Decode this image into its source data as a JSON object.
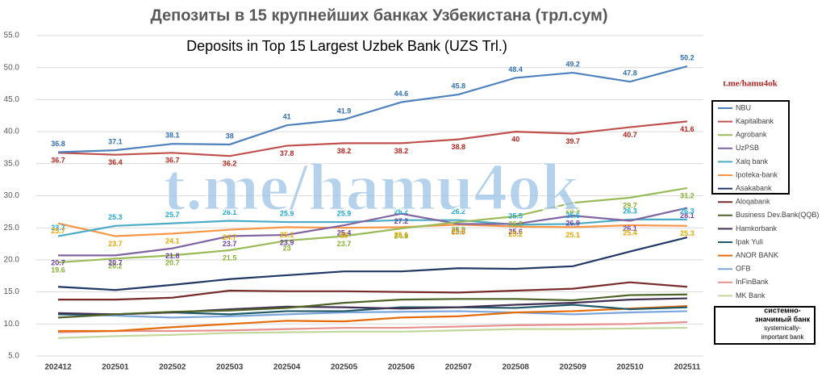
{
  "chart_data": {
    "type": "line",
    "title": "Депозиты в 15 крупнейших банках Узбекистана (трл.сум)",
    "subtitle": "Deposits in Top 15 Largest Uzbek Bank (UZS Trl.)",
    "watermark": "t.me/hamu4ok",
    "watermark_small": "t.me/hamu4ok",
    "note": [
      "системно-",
      "значимый банк",
      "systemically-",
      "important bank"
    ],
    "categories": [
      "202412",
      "202501",
      "202502",
      "202503",
      "202504",
      "202505",
      "202506",
      "202507",
      "202508",
      "202509",
      "202510",
      "202511"
    ],
    "ylim": [
      5,
      55
    ],
    "yticks": [
      {
        "value": 5,
        "label": "5.0"
      },
      {
        "value": 10,
        "label": "10.0"
      },
      {
        "value": 15,
        "label": "15.0"
      },
      {
        "value": 20,
        "label": "20.0"
      },
      {
        "value": 25,
        "label": "25.0"
      },
      {
        "value": 30,
        "label": "30.0"
      },
      {
        "value": 35,
        "label": "35.0"
      },
      {
        "value": 40,
        "label": "40.0"
      },
      {
        "value": 45,
        "label": "45.0"
      },
      {
        "value": 50,
        "label": "50.0"
      },
      {
        "value": 55,
        "label": "55.0"
      }
    ],
    "grid": true,
    "legend": "right",
    "series": [
      {
        "name": "NBU",
        "color": "#4f81bd",
        "label_color": "#2f6fb5",
        "data_labels": true,
        "label_position": "above",
        "systemic": true,
        "values": [
          36.8,
          37.1,
          38.1,
          38.0,
          41.0,
          41.9,
          44.6,
          45.8,
          48.4,
          49.2,
          47.8,
          50.2
        ]
      },
      {
        "name": "Kapitalbank",
        "color": "#c0504d",
        "label_color": "#b3261e",
        "data_labels": true,
        "label_position": "below",
        "systemic": true,
        "values": [
          36.7,
          36.4,
          36.7,
          36.2,
          37.8,
          38.2,
          38.2,
          38.8,
          40.0,
          39.7,
          40.7,
          41.6
        ]
      },
      {
        "name": "Agrobank",
        "color": "#9bbb59",
        "label_color": "#86b02e",
        "data_labels": true,
        "label_position": "below",
        "systemic": true,
        "values": [
          19.6,
          20.2,
          20.7,
          21.5,
          23.0,
          23.7,
          24.9,
          25.9,
          26.8,
          28.9,
          29.7,
          31.2
        ]
      },
      {
        "name": "UzPSB",
        "color": "#8064a2",
        "label_color": "#6c3fa0",
        "data_labels": true,
        "label_position": "below",
        "systemic": true,
        "values": [
          20.7,
          20.7,
          21.8,
          23.7,
          23.9,
          25.4,
          27.2,
          25.6,
          25.6,
          26.9,
          26.1,
          28.1
        ]
      },
      {
        "name": "Xalq bank",
        "color": "#4bacc6",
        "label_color": "#1fa9d6",
        "data_labels": true,
        "label_position": "above",
        "systemic": true,
        "values": [
          23.7,
          25.3,
          25.7,
          26.1,
          25.9,
          25.9,
          26.2,
          26.2,
          25.5,
          25.6,
          26.3,
          26.3
        ]
      },
      {
        "name": "Ipoteka-bank",
        "color": "#f79646",
        "label_color": "#e8a800",
        "data_labels": true,
        "label_position": "below",
        "systemic": true,
        "values": [
          25.7,
          23.7,
          24.1,
          24.7,
          25.1,
          25.0,
          25.1,
          25.5,
          25.2,
          25.1,
          25.4,
          25.3
        ]
      },
      {
        "name": "Asakabank",
        "color": "#1f3864",
        "systemic": true,
        "values": [
          15.8,
          15.3,
          16.1,
          17.0,
          17.6,
          18.2,
          18.2,
          18.7,
          18.6,
          19.0,
          21.3,
          23.5
        ]
      },
      {
        "name": "Aloqabank",
        "color": "#772c2a",
        "values": [
          13.8,
          13.8,
          14.1,
          15.2,
          15.1,
          15.1,
          15.0,
          14.9,
          15.2,
          15.5,
          16.5,
          15.8
        ]
      },
      {
        "name": "Business Dev.Bank(QQB)",
        "color": "#4f6228",
        "values": [
          11.0,
          11.5,
          11.9,
          12.1,
          12.5,
          13.3,
          13.8,
          13.9,
          13.9,
          13.7,
          14.5,
          14.6
        ]
      },
      {
        "name": "Hamkorbank",
        "color": "#403152",
        "values": [
          11.7,
          11.5,
          11.8,
          12.3,
          12.7,
          12.6,
          12.4,
          12.6,
          13.0,
          13.3,
          13.8,
          14.0
        ]
      },
      {
        "name": "Ipak Yuli",
        "color": "#215968",
        "values": [
          11.5,
          11.5,
          11.8,
          11.5,
          12.0,
          12.0,
          12.6,
          12.6,
          12.5,
          13.0,
          12.3,
          12.6
        ]
      },
      {
        "name": "ANOR BANK",
        "color": "#e46c0a",
        "values": [
          8.9,
          8.9,
          9.5,
          10.0,
          10.5,
          10.4,
          11.0,
          11.2,
          11.8,
          12.0,
          12.4,
          12.8
        ]
      },
      {
        "name": "OFB",
        "color": "#7ba6dc",
        "values": [
          11.5,
          11.3,
          11.0,
          11.2,
          11.5,
          11.8,
          11.9,
          12.0,
          11.8,
          11.5,
          11.8,
          12.0
        ]
      },
      {
        "name": "InFinBank",
        "color": "#e6918e",
        "values": [
          8.7,
          8.9,
          8.9,
          9.0,
          9.2,
          9.4,
          9.4,
          9.6,
          9.8,
          9.9,
          10.0,
          10.3
        ]
      },
      {
        "name": "MK Bank",
        "color": "#c3d69b",
        "values": [
          7.8,
          8.1,
          8.3,
          8.6,
          8.7,
          8.8,
          8.8,
          9.0,
          9.2,
          9.2,
          9.3,
          9.4
        ]
      }
    ]
  }
}
